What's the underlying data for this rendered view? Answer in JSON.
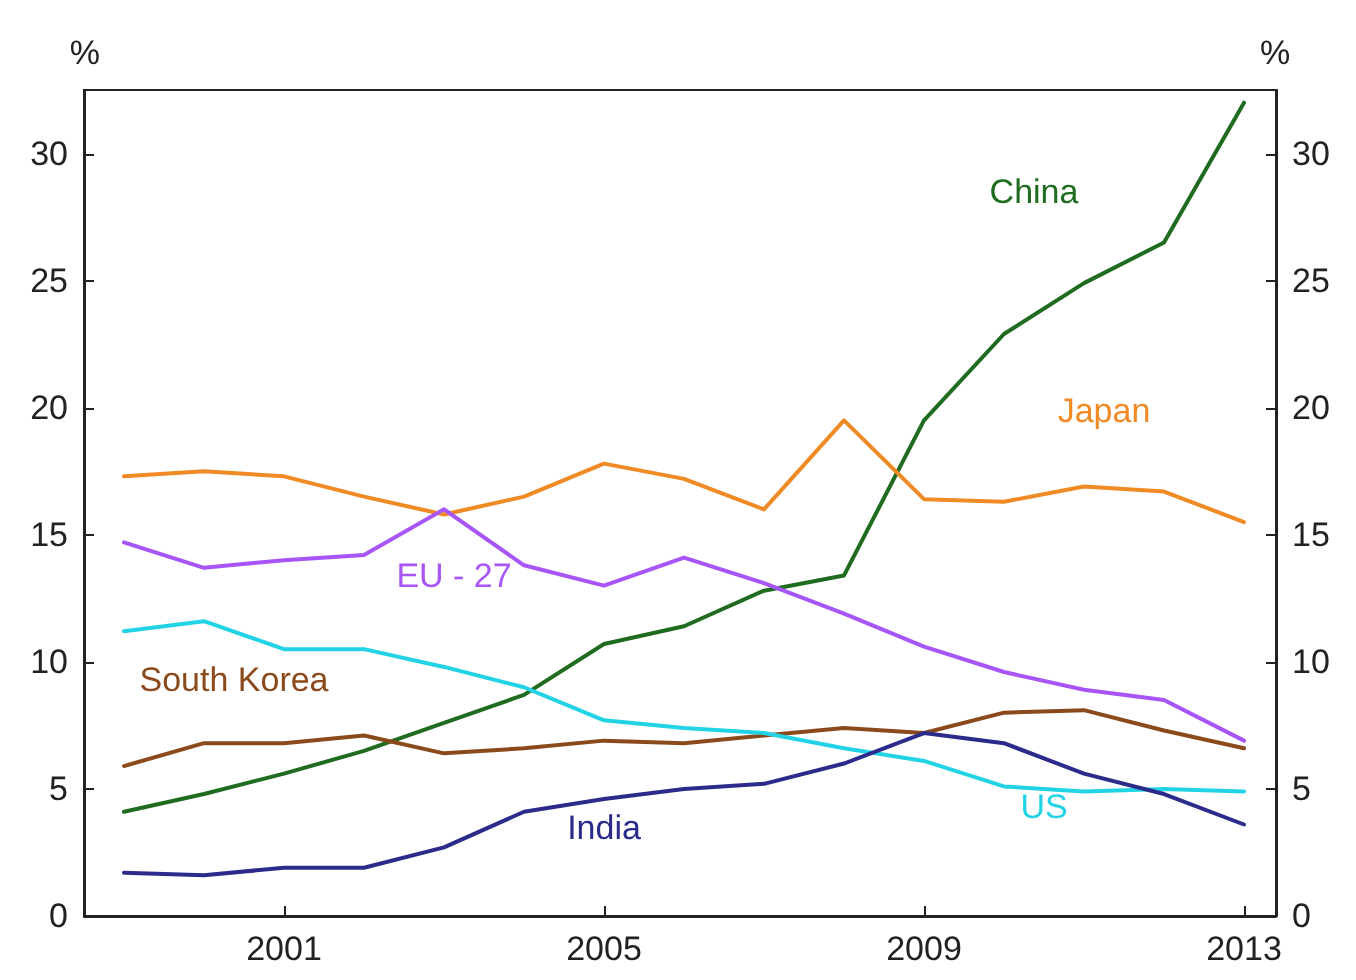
{
  "chart_data": {
    "type": "line",
    "ylabel": "%",
    "y2label": "%",
    "x": [
      1999,
      2000,
      2001,
      2002,
      2003,
      2004,
      2005,
      2006,
      2007,
      2008,
      2009,
      2010,
      2011,
      2012,
      2013
    ],
    "xlim": [
      1998.5,
      2013.4
    ],
    "xticks": [
      2001,
      2005,
      2009,
      2013
    ],
    "ylim": [
      0,
      32.5
    ],
    "yticks": [
      0,
      5,
      10,
      15,
      20,
      25,
      30
    ],
    "y2lim": [
      0,
      32.5
    ],
    "y2ticks": [
      0,
      5,
      10,
      15,
      20,
      25,
      30
    ],
    "grid": false,
    "legend": false,
    "marker": "none",
    "line_style": "solid",
    "series": [
      {
        "name": "China",
        "color": "#1f6b1f",
        "values": [
          4.1,
          4.8,
          5.6,
          6.5,
          7.6,
          8.7,
          10.7,
          11.4,
          12.8,
          13.4,
          19.5,
          22.9,
          24.9,
          26.5,
          32.0
        ]
      },
      {
        "name": "Japan",
        "color": "#f08a24",
        "values": [
          17.3,
          17.5,
          17.3,
          16.5,
          15.8,
          16.5,
          17.8,
          17.2,
          16.0,
          19.5,
          16.4,
          16.3,
          16.9,
          16.7,
          15.5
        ]
      },
      {
        "name": "EU - 27",
        "color": "#a855f7",
        "values": [
          14.7,
          13.7,
          14.0,
          14.2,
          16.0,
          13.8,
          13.0,
          14.1,
          13.1,
          11.9,
          10.6,
          9.6,
          8.9,
          8.5,
          6.9
        ]
      },
      {
        "name": "South Korea",
        "color": "#8b4a1c",
        "values": [
          5.9,
          6.8,
          6.8,
          7.1,
          6.4,
          6.6,
          6.9,
          6.8,
          7.1,
          7.4,
          7.2,
          8.0,
          8.1,
          7.3,
          6.6
        ]
      },
      {
        "name": "US",
        "color": "#22d3e6",
        "values": [
          11.2,
          11.6,
          10.5,
          10.5,
          9.8,
          9.0,
          7.7,
          7.4,
          7.2,
          6.6,
          6.1,
          5.1,
          4.9,
          5.0,
          4.9
        ]
      },
      {
        "name": "India",
        "color": "#2b2b8c",
        "values": [
          1.7,
          1.6,
          1.9,
          1.9,
          2.7,
          4.1,
          4.6,
          5.0,
          5.2,
          6.0,
          7.2,
          6.8,
          5.6,
          4.8,
          3.6
        ]
      }
    ]
  }
}
